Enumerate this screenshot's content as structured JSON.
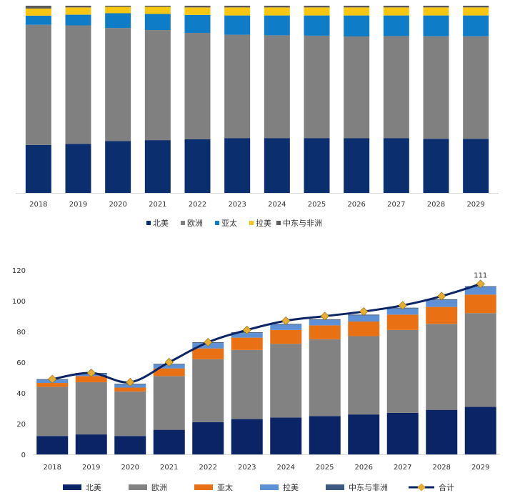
{
  "colors": {
    "top": [
      "#0b2e6e",
      "#808080",
      "#0e7cc7",
      "#f7c612",
      "#5a5a5a"
    ],
    "bottom": [
      "#0b2466",
      "#828282",
      "#ea7113",
      "#5e90d6",
      "#3f5a80"
    ],
    "axis": "#d9d9d9",
    "total_line": "#0b2466",
    "total_marker": "#e6ad30"
  },
  "chart_data": [
    {
      "type": "bar",
      "stacked": "percent",
      "title": "",
      "xlabel": "",
      "ylabel": "",
      "categories": [
        "2018",
        "2019",
        "2020",
        "2021",
        "2022",
        "2023",
        "2024",
        "2025",
        "2026",
        "2027",
        "2028",
        "2029"
      ],
      "series": [
        {
          "name": "北美",
          "values": [
            25.6,
            26.2,
            27.7,
            28.2,
            28.7,
            29.2,
            29.2,
            29.2,
            29.2,
            29.2,
            28.9,
            28.9
          ]
        },
        {
          "name": "欧洲",
          "values": [
            64.2,
            63.3,
            60.4,
            58.8,
            56.8,
            55.3,
            55.0,
            54.8,
            54.4,
            54.6,
            54.8,
            54.8
          ]
        },
        {
          "name": "亚太",
          "values": [
            4.9,
            5.7,
            7.9,
            8.6,
            9.6,
            10.3,
            10.6,
            10.8,
            11.2,
            11.0,
            11.1,
            11.1
          ]
        },
        {
          "name": "拉美",
          "values": [
            3.8,
            3.9,
            3.4,
            3.8,
            4.0,
            4.3,
            4.3,
            4.3,
            4.3,
            4.3,
            4.3,
            4.3
          ]
        },
        {
          "name": "中东与非洲",
          "values": [
            1.5,
            0.9,
            0.6,
            0.6,
            0.9,
            0.9,
            0.9,
            0.9,
            0.9,
            0.9,
            0.9,
            0.9
          ]
        }
      ],
      "ylim": [
        0,
        100
      ],
      "legend": "bottom"
    },
    {
      "type": "bar",
      "stacked": true,
      "title": "",
      "xlabel": "",
      "ylabel": "",
      "categories": [
        "2018",
        "2019",
        "2020",
        "2021",
        "2022",
        "2023",
        "2024",
        "2025",
        "2026",
        "2027",
        "2028",
        "2029"
      ],
      "series": [
        {
          "name": "北美",
          "values": [
            12,
            13,
            12,
            16,
            21,
            23,
            24,
            25,
            26,
            27,
            29,
            31
          ]
        },
        {
          "name": "欧洲",
          "values": [
            32,
            34,
            29,
            35,
            41,
            45,
            48,
            50,
            51,
            54,
            56,
            61
          ]
        },
        {
          "name": "亚太",
          "values": [
            2.5,
            4,
            2.5,
            5,
            7,
            8,
            9,
            9,
            9.5,
            10,
            11,
            12
          ]
        },
        {
          "name": "拉美",
          "values": [
            2,
            1.5,
            2,
            2.5,
            3.5,
            3,
            3.5,
            3.5,
            4,
            4,
            4.5,
            5
          ]
        },
        {
          "name": "中东与非洲",
          "values": [
            0.5,
            0.5,
            0.5,
            0.5,
            0.5,
            0.5,
            0.5,
            0.5,
            0.5,
            0.5,
            0.5,
            0.5
          ]
        }
      ],
      "line": {
        "name": "合计",
        "values": [
          49,
          53,
          47,
          60,
          73,
          81,
          87,
          90,
          93,
          97,
          103,
          111
        ]
      },
      "annotations": [
        {
          "category": "2029",
          "text": "111"
        }
      ],
      "yticks": [
        0,
        20,
        40,
        60,
        80,
        100,
        120
      ],
      "ylim": [
        0,
        120
      ],
      "legend": "bottom"
    }
  ]
}
